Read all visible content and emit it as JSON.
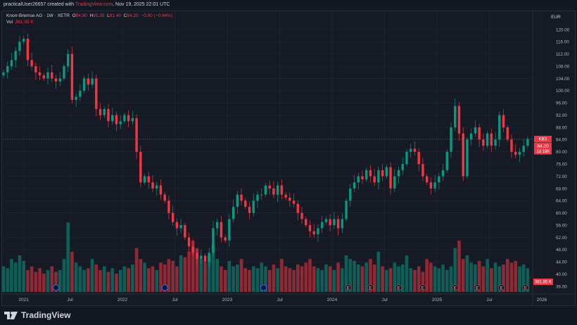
{
  "header": {
    "author": "practicalUser26657",
    "created_text": "created with",
    "site": "TradingView.com",
    "timestamp": ", Nov 19, 2025 22:01 UTC"
  },
  "legend": {
    "symbol_line": "Knorr-Bremse AG · 1W · XETR",
    "o_label": "O",
    "o": "84.90",
    "h_label": "H",
    "h": "85.35",
    "l_label": "L",
    "l": "81.40",
    "c_label": "C",
    "c": "84.20",
    "change": "−0.80 (−0.94%)",
    "vol_label": "Vol",
    "vol": "381.95 K"
  },
  "price_axis": {
    "currency": "EUR",
    "last_symbol": "KBX",
    "last_price": "84.20",
    "countdown": "1d 19h",
    "volume_badge": "381.95 K"
  },
  "logo": {
    "text": "TradingView"
  },
  "colors": {
    "up": "#089981",
    "down": "#f23645",
    "background": "#161a25",
    "grid": "#232734"
  },
  "chart_data": {
    "type": "candlestick",
    "title": "Knorr-Bremse AG · 1W · XETR",
    "ylim": [
      36,
      122
    ],
    "y_ticks": [
      36,
      40,
      44,
      48,
      52,
      56,
      60,
      64,
      68,
      72,
      76,
      80,
      84,
      88,
      92,
      96,
      100,
      104,
      108,
      112,
      116,
      120
    ],
    "x_ticks": [
      "2021",
      "Jul",
      "2022",
      "Jul",
      "2023",
      "Jul",
      "2024",
      "Jul",
      "2025",
      "Jul",
      "2026"
    ],
    "x_tick_positions_index": [
      5,
      16.5,
      29.5,
      42.5,
      55.5,
      68.5,
      81.5,
      94.5,
      107.5,
      120.5,
      133.5
    ],
    "closes": [
      106,
      108,
      110,
      113,
      116,
      117,
      110,
      108,
      106,
      105,
      104,
      106,
      104,
      103,
      104,
      108,
      112,
      97,
      98,
      100,
      104,
      102,
      104,
      94,
      92,
      94,
      90,
      92,
      89,
      90,
      92,
      90,
      91,
      80,
      70,
      72,
      70,
      68,
      69,
      66,
      64,
      60,
      57,
      55,
      56,
      52,
      49,
      47,
      45,
      46,
      44,
      47,
      55,
      57,
      52,
      51,
      58,
      62,
      66,
      64,
      62,
      60,
      64,
      66,
      66,
      69,
      68,
      66,
      69,
      66,
      65,
      64,
      63,
      60,
      58,
      56,
      54,
      53,
      55,
      57,
      58,
      56,
      58,
      55,
      58,
      64,
      68,
      70,
      72,
      71,
      74,
      72,
      70,
      74,
      72,
      75,
      68,
      72,
      74,
      76,
      80,
      81,
      80,
      76,
      72,
      70,
      68,
      70,
      72,
      74,
      80,
      88,
      95,
      86,
      72,
      84,
      86,
      88,
      84,
      82,
      86,
      82,
      84,
      92,
      88,
      84,
      80,
      79,
      80,
      82,
      84.2
    ],
    "volumes_k": [
      700,
      650,
      900,
      800,
      1000,
      850,
      600,
      700,
      550,
      650,
      500,
      600,
      700,
      550,
      600,
      900,
      1900,
      1100,
      800,
      700,
      600,
      650,
      900,
      750,
      600,
      700,
      550,
      650,
      500,
      600,
      700,
      650,
      750,
      1200,
      900,
      800,
      650,
      700,
      600,
      800,
      750,
      900,
      850,
      700,
      1000,
      950,
      1100,
      1400,
      1200,
      900,
      800,
      1000,
      1300,
      900,
      700,
      600,
      850,
      700,
      750,
      900,
      650,
      600,
      700,
      650,
      800,
      700,
      600,
      750,
      650,
      900,
      700,
      650,
      600,
      750,
      700,
      800,
      900,
      700,
      650,
      600,
      750,
      700,
      600,
      800,
      650,
      1000,
      900,
      850,
      750,
      700,
      800,
      900,
      750,
      1100,
      700,
      600,
      650,
      800,
      700,
      750,
      1000,
      650,
      600,
      700,
      550,
      900,
      800,
      700,
      650,
      750,
      600,
      700,
      1200,
      1400,
      900,
      1000,
      800,
      750,
      850,
      700,
      900,
      650,
      800,
      700,
      750,
      900,
      800,
      850,
      700,
      750,
      650,
      382
    ],
    "earnings_index": [
      85.5,
      91,
      98,
      104,
      112,
      117.5,
      123.5,
      129.5
    ],
    "dividend_index": [
      13,
      40,
      64.5
    ],
    "last": 84.2
  }
}
